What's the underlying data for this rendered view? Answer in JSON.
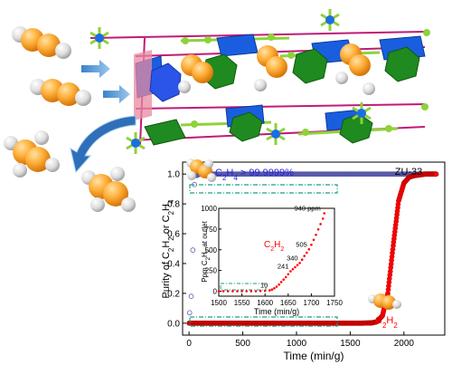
{
  "chart_data": {
    "type": "scatter",
    "title": "ZU-33",
    "xlabel": "Time (min/g)",
    "ylabel_html": "Purity of C<sub>2</sub>H<sub>2</sub> or C<sub>2</sub>H<sub>4</sub>",
    "xlim": [
      -60,
      2380
    ],
    "ylim": [
      -0.08,
      1.08
    ],
    "xticks": [
      0,
      500,
      1000,
      1500,
      2000
    ],
    "yticks": [
      0.0,
      0.2,
      0.4,
      0.6,
      0.8,
      1.0
    ],
    "grid": false,
    "series": [
      {
        "name": "C2H4",
        "marker": "open-circle",
        "color": "#5a5aa8",
        "points": [
          [
            5,
            0.07
          ],
          [
            20,
            0.18
          ],
          [
            35,
            0.49
          ],
          [
            50,
            0.93
          ],
          [
            70,
            0.99
          ],
          [
            100,
            1.0
          ],
          [
            200,
            1.0
          ],
          [
            400,
            1.0
          ],
          [
            600,
            1.0
          ],
          [
            800,
            1.0
          ],
          [
            1000,
            1.0
          ],
          [
            1200,
            1.0
          ],
          [
            1400,
            1.0
          ],
          [
            1600,
            1.0
          ],
          [
            1800,
            1.0
          ],
          [
            2000,
            1.0
          ],
          [
            2150,
            1.0
          ],
          [
            2300,
            1.0
          ]
        ]
      },
      {
        "name": "C2H2",
        "marker": "filled-circle",
        "color": "#ff0000",
        "points": [
          [
            0,
            0.0
          ],
          [
            200,
            0.0
          ],
          [
            400,
            0.0
          ],
          [
            600,
            0.0
          ],
          [
            800,
            0.0
          ],
          [
            1000,
            0.0
          ],
          [
            1200,
            0.0
          ],
          [
            1400,
            0.0
          ],
          [
            1600,
            0.0
          ],
          [
            1700,
            0.002
          ],
          [
            1750,
            0.01
          ],
          [
            1800,
            0.05
          ],
          [
            1850,
            0.2
          ],
          [
            1900,
            0.52
          ],
          [
            1950,
            0.82
          ],
          [
            2000,
            0.94
          ],
          [
            2050,
            0.98
          ],
          [
            2100,
            0.99
          ],
          [
            2200,
            1.0
          ],
          [
            2300,
            1.0
          ]
        ]
      }
    ],
    "annotations": {
      "purity_html": "C<sub>2</sub>H<sub>4</sub> &gt; 99.9999%",
      "c2h2_html": "C<sub>2</sub>H<sub>2</sub>"
    },
    "inset": {
      "type": "scatter",
      "xlabel": "Time (min/g)",
      "ylabel_html": "Ppm C<sub>2</sub>H<sub>2</sub> at outlet",
      "xlim": [
        1500,
        1750
      ],
      "ylim": [
        -60,
        1000
      ],
      "xticks": [
        1500,
        1550,
        1600,
        1650,
        1700,
        1750
      ],
      "yticks": [
        0,
        250,
        500,
        750,
        1000
      ],
      "series_label_html": "C<sub>2</sub>H<sub>2</sub>",
      "labels": [
        "10",
        "241",
        "340",
        "505",
        "940 ppm"
      ],
      "label_points": [
        [
          1610,
          10
        ],
        [
          1655,
          241
        ],
        [
          1675,
          340
        ],
        [
          1695,
          505
        ],
        [
          1728,
          940
        ]
      ],
      "points": [
        [
          1500,
          0
        ],
        [
          1510,
          0
        ],
        [
          1520,
          0
        ],
        [
          1530,
          0
        ],
        [
          1540,
          0
        ],
        [
          1550,
          0
        ],
        [
          1560,
          0
        ],
        [
          1570,
          0
        ],
        [
          1580,
          0
        ],
        [
          1590,
          2
        ],
        [
          1600,
          5
        ],
        [
          1610,
          10
        ],
        [
          1615,
          20
        ],
        [
          1620,
          35
        ],
        [
          1625,
          55
        ],
        [
          1630,
          80
        ],
        [
          1635,
          110
        ],
        [
          1640,
          140
        ],
        [
          1645,
          170
        ],
        [
          1650,
          205
        ],
        [
          1655,
          241
        ],
        [
          1660,
          265
        ],
        [
          1665,
          290
        ],
        [
          1670,
          315
        ],
        [
          1675,
          340
        ],
        [
          1680,
          380
        ],
        [
          1685,
          425
        ],
        [
          1690,
          465
        ],
        [
          1695,
          505
        ],
        [
          1700,
          560
        ],
        [
          1705,
          620
        ],
        [
          1710,
          680
        ],
        [
          1715,
          745
        ],
        [
          1720,
          810
        ],
        [
          1725,
          875
        ],
        [
          1728,
          940
        ]
      ]
    }
  }
}
